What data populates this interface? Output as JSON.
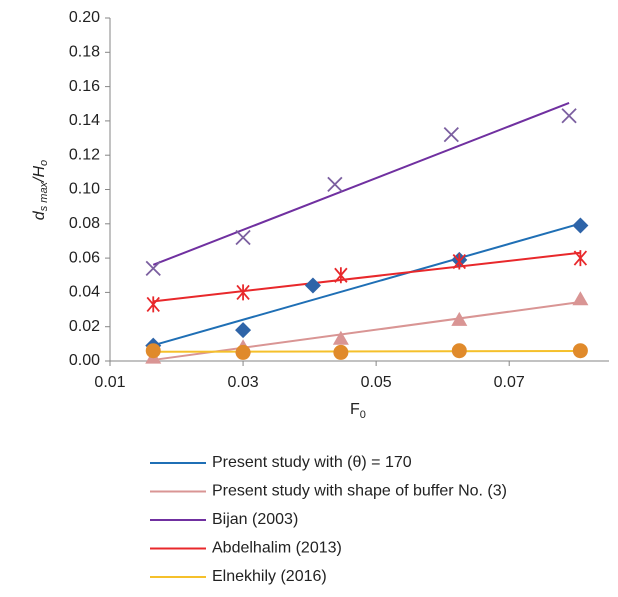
{
  "chart_data": {
    "type": "scatter",
    "ylabel": [
      "d",
      "s max",
      "/H",
      "o"
    ],
    "xlabel": [
      "F",
      "0"
    ],
    "xlim": [
      0.01,
      0.085
    ],
    "xticks": [
      0.01,
      0.03,
      0.05,
      0.07
    ],
    "ylim": [
      0,
      0.2
    ],
    "yticks": [
      {
        "value": 0,
        "label": "0.00"
      },
      0.02,
      0.04,
      0.06,
      0.08,
      {
        "value": 0.1,
        "label": "0.10"
      },
      0.12,
      0.14,
      0.16,
      0.18,
      {
        "value": 0.2,
        "label": "0.20"
      }
    ],
    "trendline": "linear",
    "series": [
      {
        "name": "Present study with (θ) = 170",
        "color": "#1f6fb5",
        "marker_color": "#2e64a8",
        "marker": "diamond",
        "x": [
          0.0165,
          0.03,
          0.0405,
          0.0625,
          0.0807
        ],
        "values": [
          0.009,
          0.018,
          0.044,
          0.059,
          0.079
        ]
      },
      {
        "name": "Present study with shape of buffer No. (3)",
        "color": "#d99594",
        "marker_color": "#d99594",
        "marker": "triangle",
        "x": [
          0.0165,
          0.03,
          0.0447,
          0.0625,
          0.0807
        ],
        "values": [
          0.002,
          0.008,
          0.013,
          0.024,
          0.036
        ]
      },
      {
        "name": "Bijan (2003)",
        "color": "#7030a0",
        "marker_color": "#7b5fa0",
        "marker": "x",
        "x": [
          0.0165,
          0.03,
          0.0438,
          0.0613,
          0.079
        ],
        "values": [
          0.054,
          0.072,
          0.103,
          0.132,
          0.143
        ]
      },
      {
        "name": "Abdelhalim (2013)",
        "color": "#e8282b",
        "marker_color": "#e8282b",
        "marker": "star",
        "x": [
          0.0165,
          0.03,
          0.0447,
          0.0625,
          0.0807
        ],
        "values": [
          0.033,
          0.04,
          0.05,
          0.058,
          0.06
        ]
      },
      {
        "name": "Elnekhily (2016)",
        "color": "#f5c02b",
        "marker_color": "#e08a2b",
        "marker": "circle",
        "x": [
          0.0165,
          0.03,
          0.0447,
          0.0625,
          0.0807
        ],
        "values": [
          0.006,
          0.005,
          0.005,
          0.006,
          0.006
        ]
      }
    ]
  }
}
